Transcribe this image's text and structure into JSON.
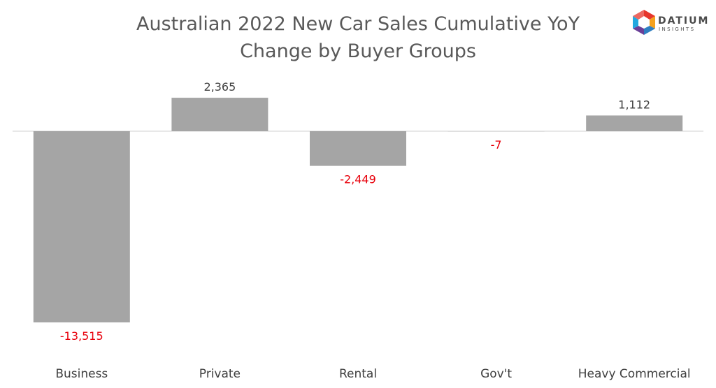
{
  "chart_data": {
    "type": "bar",
    "title_lines": [
      "Australian 2022 New Car Sales Cumulative YoY",
      "Change by Buyer Groups"
    ],
    "categories": [
      "Business",
      "Private",
      "Rental",
      "Gov't",
      "Heavy Commercial"
    ],
    "values": [
      -13515,
      2365,
      -2449,
      -7,
      1112
    ],
    "value_labels": [
      "-13,515",
      "2,365",
      "-2,449",
      "-7",
      "1,112"
    ],
    "xlabel": "",
    "ylabel": "",
    "ylim": [
      -13515,
      2365
    ],
    "grid": false,
    "legend": "none",
    "bar_color": "#a5a5a5",
    "baseline_color": "#d9d9d9",
    "positive_label_color": "#404040",
    "negative_label_color": "#e8000b"
  },
  "logo": {
    "word": "DATIUM",
    "sub": "INSIGHTS",
    "text_color": "#4a4a4a",
    "colors": [
      "#e6362c",
      "#f4a11d",
      "#2f7fc1",
      "#6a3f98",
      "#22a8e0"
    ]
  }
}
